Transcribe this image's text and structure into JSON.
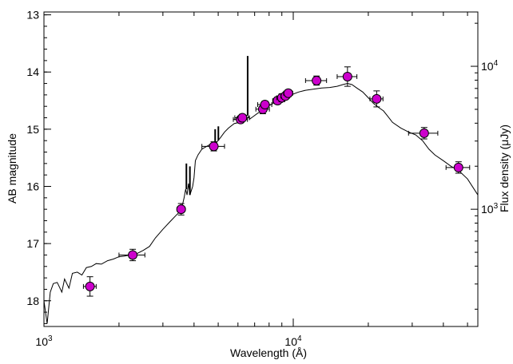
{
  "chart_data": {
    "type": "scatter",
    "xlabel": "Wavelength (Å)",
    "ylabel": "AB magnitude",
    "y2label": "Flux density (μJy)",
    "xscale": "log",
    "xlim": [
      1000,
      55000
    ],
    "ylim": [
      18.45,
      12.95
    ],
    "y_inverted": true,
    "x_ticks": [
      {
        "value": 1000,
        "base": "10",
        "exp": "3"
      },
      {
        "value": 10000,
        "base": "10",
        "exp": "4"
      }
    ],
    "y_ticks": [
      {
        "value": 13,
        "label": "13"
      },
      {
        "value": 14,
        "label": "14"
      },
      {
        "value": 15,
        "label": "15"
      },
      {
        "value": 16,
        "label": "16"
      },
      {
        "value": 17,
        "label": "17"
      },
      {
        "value": 18,
        "label": "18"
      }
    ],
    "y2_ticks": [
      {
        "flux_ujy": 10000,
        "base": "10",
        "exp": "4"
      },
      {
        "flux_ujy": 1000,
        "base": "10",
        "exp": "3"
      }
    ],
    "marker_color": "#cc00cc",
    "line_color": "#000000",
    "grid": false,
    "legend": "none",
    "points": [
      {
        "x": 1530,
        "y": 17.75,
        "xerr": [
          90,
          90
        ],
        "yerr": 0.17
      },
      {
        "x": 2270,
        "y": 17.2,
        "xerr": [
          270,
          270
        ],
        "yerr": 0.1
      },
      {
        "x": 3550,
        "y": 16.4,
        "xerr": [
          130,
          130
        ],
        "yerr": 0.1
      },
      {
        "x": 4800,
        "y": 15.3,
        "xerr": [
          500,
          500
        ],
        "yerr": 0.08
      },
      {
        "x": 6150,
        "y": 14.83,
        "xerr": [
          400,
          400
        ],
        "yerr": 0.06
      },
      {
        "x": 6250,
        "y": 14.8,
        "xerr": [
          420,
          420
        ],
        "yerr": 0.06
      },
      {
        "x": 7550,
        "y": 14.65,
        "xerr": [
          470,
          470
        ],
        "yerr": 0.08
      },
      {
        "x": 7700,
        "y": 14.57,
        "xerr": [
          500,
          500
        ],
        "yerr": 0.06
      },
      {
        "x": 8650,
        "y": 14.5,
        "xerr": [
          380,
          380
        ],
        "yerr": 0.06
      },
      {
        "x": 9000,
        "y": 14.45,
        "xerr": [
          420,
          420
        ],
        "yerr": 0.07
      },
      {
        "x": 9300,
        "y": 14.42,
        "xerr": [
          380,
          380
        ],
        "yerr": 0.06
      },
      {
        "x": 9550,
        "y": 14.37,
        "xerr": [
          400,
          400
        ],
        "yerr": 0.06
      },
      {
        "x": 12400,
        "y": 14.15,
        "xerr": [
          1200,
          1200
        ],
        "yerr": 0.08
      },
      {
        "x": 16500,
        "y": 14.08,
        "xerr": [
          1500,
          1500
        ],
        "yerr": 0.17
      },
      {
        "x": 21600,
        "y": 14.47,
        "xerr": [
          1300,
          1300
        ],
        "yerr": 0.14
      },
      {
        "x": 33500,
        "y": 15.07,
        "xerr": [
          4500,
          4500
        ],
        "yerr": 0.1
      },
      {
        "x": 46000,
        "y": 15.67,
        "xerr": [
          5000,
          5000
        ],
        "yerr": 0.1
      }
    ],
    "model_curve": [
      [
        1000,
        18.0
      ],
      [
        1030,
        18.4
      ],
      [
        1060,
        17.85
      ],
      [
        1090,
        17.7
      ],
      [
        1130,
        17.68
      ],
      [
        1180,
        17.85
      ],
      [
        1210,
        17.62
      ],
      [
        1260,
        17.78
      ],
      [
        1300,
        17.52
      ],
      [
        1360,
        17.5
      ],
      [
        1420,
        17.55
      ],
      [
        1480,
        17.42
      ],
      [
        1550,
        17.4
      ],
      [
        1620,
        17.35
      ],
      [
        1700,
        17.36
      ],
      [
        1800,
        17.3
      ],
      [
        1900,
        17.27
      ],
      [
        2000,
        17.23
      ],
      [
        2100,
        17.22
      ],
      [
        2200,
        17.2
      ],
      [
        2350,
        17.18
      ],
      [
        2500,
        17.12
      ],
      [
        2650,
        17.05
      ],
      [
        2800,
        16.9
      ],
      [
        3000,
        16.75
      ],
      [
        3200,
        16.62
      ],
      [
        3400,
        16.5
      ],
      [
        3550,
        16.42
      ],
      [
        3650,
        16.2
      ],
      [
        3700,
        16.05
      ],
      [
        3750,
        16.15
      ],
      [
        3800,
        15.95
      ],
      [
        3850,
        16.15
      ],
      [
        3950,
        16.0
      ],
      [
        4000,
        15.85
      ],
      [
        4050,
        15.55
      ],
      [
        4150,
        15.45
      ],
      [
        4300,
        15.35
      ],
      [
        4500,
        15.3
      ],
      [
        4700,
        15.25
      ],
      [
        4850,
        15.3
      ],
      [
        4950,
        15.22
      ],
      [
        5100,
        15.15
      ],
      [
        5300,
        15.05
      ],
      [
        5500,
        14.98
      ],
      [
        5800,
        14.9
      ],
      [
        6100,
        14.88
      ],
      [
        6300,
        14.8
      ],
      [
        6550,
        14.75
      ],
      [
        6700,
        14.82
      ],
      [
        6900,
        14.78
      ],
      [
        7200,
        14.72
      ],
      [
        7500,
        14.68
      ],
      [
        7900,
        14.6
      ],
      [
        8300,
        14.55
      ],
      [
        8700,
        14.5
      ],
      [
        9200,
        14.45
      ],
      [
        9800,
        14.4
      ],
      [
        10500,
        14.35
      ],
      [
        11200,
        14.32
      ],
      [
        12000,
        14.3
      ],
      [
        13000,
        14.28
      ],
      [
        14000,
        14.27
      ],
      [
        15000,
        14.25
      ],
      [
        15800,
        14.22
      ],
      [
        16500,
        14.2
      ],
      [
        17200,
        14.22
      ],
      [
        18000,
        14.28
      ],
      [
        19000,
        14.35
      ],
      [
        20000,
        14.45
      ],
      [
        21000,
        14.55
      ],
      [
        22000,
        14.62
      ],
      [
        23000,
        14.68
      ],
      [
        24000,
        14.78
      ],
      [
        25000,
        14.88
      ],
      [
        27000,
        14.98
      ],
      [
        29000,
        15.05
      ],
      [
        31000,
        15.1
      ],
      [
        33000,
        15.2
      ],
      [
        35000,
        15.35
      ],
      [
        37000,
        15.45
      ],
      [
        40000,
        15.55
      ],
      [
        43000,
        15.65
      ],
      [
        46000,
        15.72
      ],
      [
        50000,
        15.87
      ],
      [
        55000,
        16.15
      ]
    ],
    "emission_lines": [
      {
        "x": 3727,
        "top": 15.6,
        "base": 16.05
      },
      {
        "x": 3850,
        "top": 15.65,
        "base": 16.15
      },
      {
        "x": 4861,
        "top": 15.0,
        "base": 15.25
      },
      {
        "x": 5007,
        "top": 14.95,
        "base": 15.2
      },
      {
        "x": 6563,
        "top": 13.72,
        "base": 14.75
      }
    ]
  }
}
